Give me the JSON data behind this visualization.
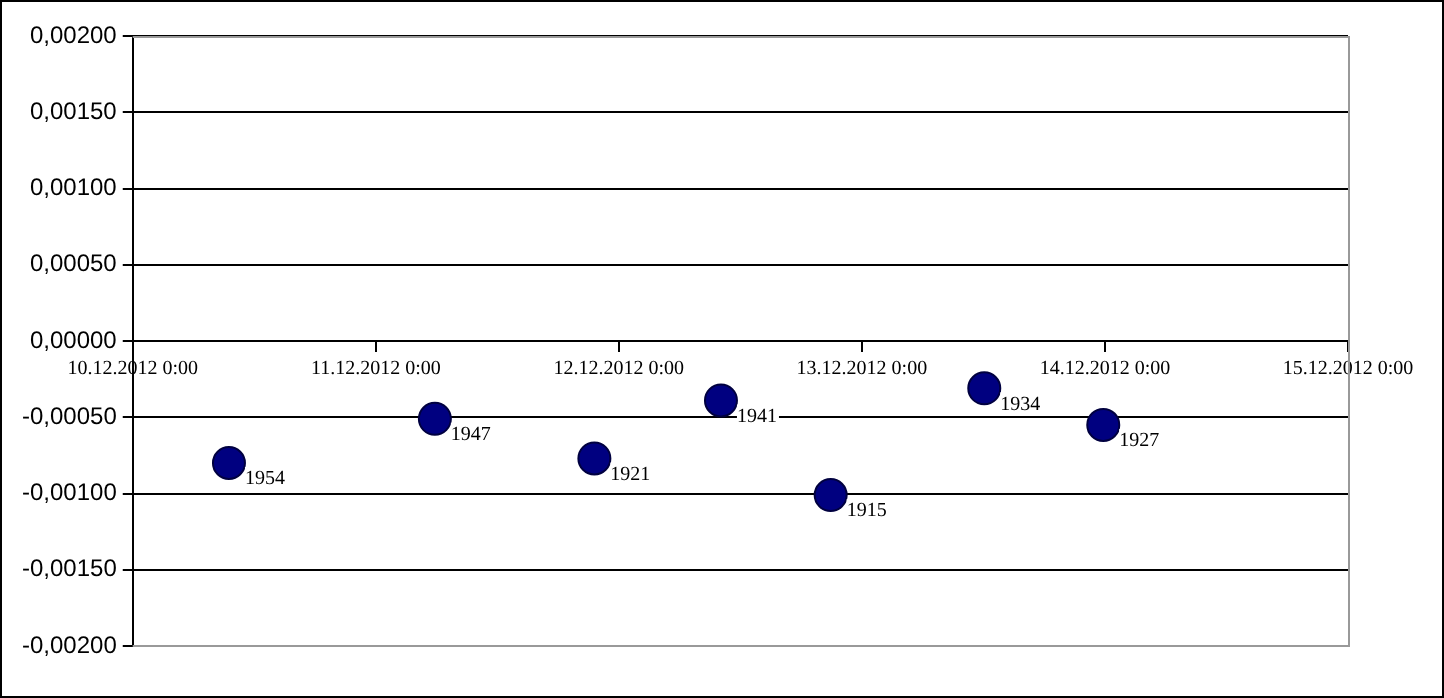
{
  "chart_data": {
    "type": "scatter",
    "x": [
      "2012-12-10T09:30",
      "2012-12-11T05:50",
      "2012-12-11T21:35",
      "2012-12-12T10:05",
      "2012-12-12T20:55",
      "2012-12-13T12:05",
      "2012-12-13T23:50"
    ],
    "series": [
      {
        "color": "#000080",
        "values": [
          -0.0008,
          -0.00051,
          -0.00077,
          -0.00039,
          -0.00101,
          -0.00031,
          -0.00055
        ]
      }
    ],
    "annotations": [
      {
        "text": "1954",
        "x": "2012-12-10T09:30",
        "y": -0.0008
      },
      {
        "text": "1947",
        "x": "2012-12-11T05:50",
        "y": -0.00051
      },
      {
        "text": "1921",
        "x": "2012-12-11T21:35",
        "y": -0.00077
      },
      {
        "text": "1941",
        "x": "2012-12-12T10:05",
        "y": -0.00039
      },
      {
        "text": "1915",
        "x": "2012-12-12T20:55",
        "y": -0.00101
      },
      {
        "text": "1934",
        "x": "2012-12-13T12:05",
        "y": -0.00031
      },
      {
        "text": "1927",
        "x": "2012-12-13T23:50",
        "y": -0.00055
      }
    ],
    "xlim": [
      "2012-12-10T00:00",
      "2012-12-15T00:00"
    ],
    "xticks": [
      {
        "value": "2012-12-10T00:00",
        "label": "10.12.2012 0:00"
      },
      {
        "value": "2012-12-11T00:00",
        "label": "11.12.2012 0:00"
      },
      {
        "value": "2012-12-12T00:00",
        "label": "12.12.2012 0:00"
      },
      {
        "value": "2012-12-13T00:00",
        "label": "13.12.2012 0:00"
      },
      {
        "value": "2012-12-14T00:00",
        "label": "14.12.2012 0:00"
      },
      {
        "value": "2012-12-15T00:00",
        "label": "15.12.2012 0:00"
      }
    ],
    "ylim": [
      -0.002,
      0.002
    ],
    "yticks": [
      {
        "value": 0.002,
        "label": "0,00200"
      },
      {
        "value": 0.0015,
        "label": "0,00150"
      },
      {
        "value": 0.001,
        "label": "0,00100"
      },
      {
        "value": 0.0005,
        "label": "0,00050"
      },
      {
        "value": 0,
        "label": "0,00000"
      },
      {
        "value": -0.0005,
        "label": "-0,00050"
      },
      {
        "value": -0.001,
        "label": "-0,00100"
      },
      {
        "value": -0.0015,
        "label": "-0,00150"
      },
      {
        "value": -0.002,
        "label": "-0,00200"
      }
    ],
    "grid": "y",
    "legend": false,
    "marker": "circle"
  }
}
